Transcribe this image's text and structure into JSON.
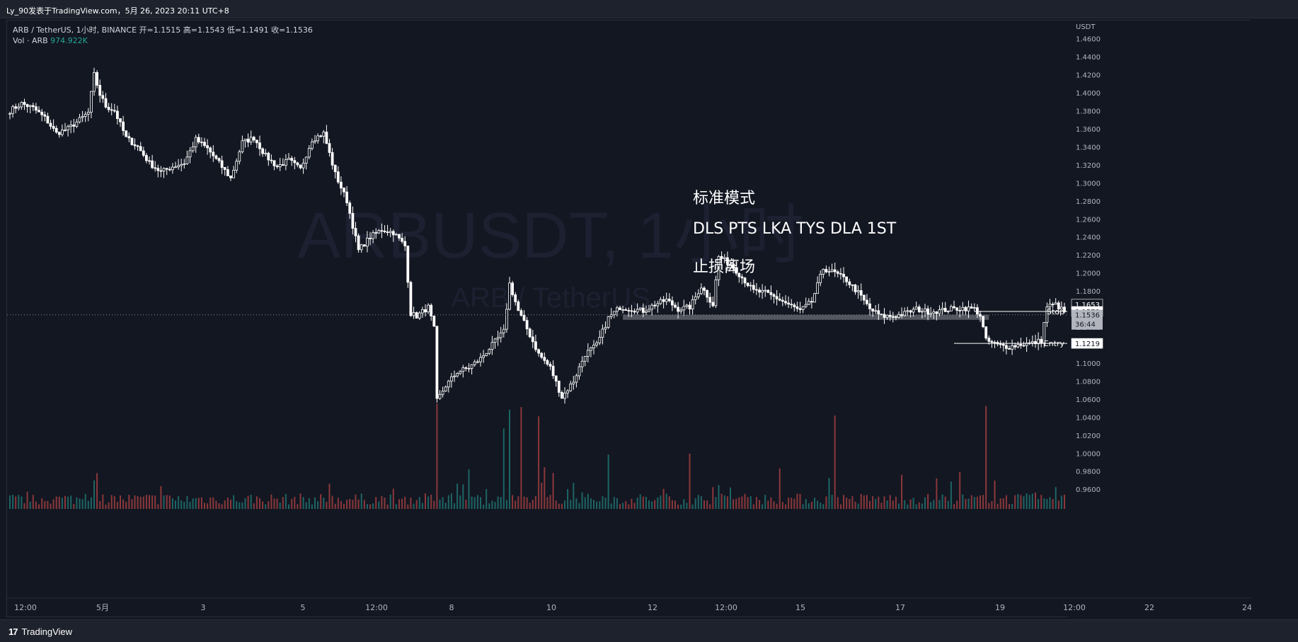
{
  "header": {
    "publisher_line": "Ly_90发表于TradingView.com，5月 26, 2023 20:11 UTC+8"
  },
  "legend": {
    "symbol_line": "ARB / TetherUS, 1小时, BINANCE  开=1.1515  高=1.1543  低=1.1491  收=1.1536",
    "vol_label": "Vol · ARB",
    "vol_value": "974.922K"
  },
  "watermark": {
    "title": "ARBUSDT, 1小时",
    "subtitle": "ARB / TetherUS"
  },
  "notes": {
    "line1": "标准模式",
    "line2": "DLS PTS LKA TYS DLA 1ST",
    "line3": "止损离场"
  },
  "footer": {
    "brand": "TradingView",
    "logo_mark": "17"
  },
  "colors": {
    "background": "#131722",
    "candle": "#ffffff",
    "vol_up": "#26a69a",
    "vol_down": "#ef5350",
    "zone": "#6b6e76"
  },
  "chart_data": {
    "type": "candlestick",
    "axis_unit": "USDT",
    "ylim": [
      0.946,
      1.466
    ],
    "y_ticks": [
      "1.4600",
      "1.4400",
      "1.4200",
      "1.4000",
      "1.3800",
      "1.3600",
      "1.3400",
      "1.3200",
      "1.3000",
      "1.2800",
      "1.2600",
      "1.2400",
      "1.2200",
      "1.2000",
      "1.1800",
      "1.1600",
      "1.1400",
      "1.1200",
      "1.1000",
      "1.0800",
      "1.0600",
      "1.0400",
      "1.0200",
      "1.0000",
      "0.9800",
      "0.9600"
    ],
    "x_ticks": [
      "12:00",
      "5月",
      "3",
      "5",
      "12:00",
      "8",
      "10",
      "12",
      "12:00",
      "15",
      "17",
      "19",
      "12:00",
      "22",
      "24"
    ],
    "close_path": [
      [
        0,
        1.38
      ],
      [
        4,
        1.388
      ],
      [
        8,
        1.383
      ],
      [
        12,
        1.372
      ],
      [
        16,
        1.355
      ],
      [
        20,
        1.36
      ],
      [
        24,
        1.37
      ],
      [
        27,
        1.378
      ],
      [
        29,
        1.42
      ],
      [
        31,
        1.398
      ],
      [
        33,
        1.385
      ],
      [
        36,
        1.38
      ],
      [
        40,
        1.35
      ],
      [
        44,
        1.34
      ],
      [
        48,
        1.322
      ],
      [
        52,
        1.312
      ],
      [
        56,
        1.318
      ],
      [
        60,
        1.322
      ],
      [
        64,
        1.348
      ],
      [
        68,
        1.338
      ],
      [
        72,
        1.322
      ],
      [
        76,
        1.305
      ],
      [
        80,
        1.345
      ],
      [
        84,
        1.35
      ],
      [
        88,
        1.33
      ],
      [
        92,
        1.318
      ],
      [
        96,
        1.325
      ],
      [
        100,
        1.315
      ],
      [
        104,
        1.348
      ],
      [
        108,
        1.355
      ],
      [
        112,
        1.31
      ],
      [
        116,
        1.28
      ],
      [
        120,
        1.225
      ],
      [
        124,
        1.24
      ],
      [
        128,
        1.248
      ],
      [
        132,
        1.245
      ],
      [
        136,
        1.23
      ],
      [
        138,
        1.155
      ],
      [
        140,
        1.152
      ],
      [
        144,
        1.162
      ],
      [
        146,
        1.138
      ],
      [
        147,
        1.058
      ],
      [
        150,
        1.075
      ],
      [
        154,
        1.09
      ],
      [
        158,
        1.095
      ],
      [
        162,
        1.105
      ],
      [
        166,
        1.12
      ],
      [
        170,
        1.135
      ],
      [
        172,
        1.188
      ],
      [
        175,
        1.158
      ],
      [
        178,
        1.138
      ],
      [
        182,
        1.11
      ],
      [
        186,
        1.095
      ],
      [
        190,
        1.062
      ],
      [
        194,
        1.08
      ],
      [
        198,
        1.11
      ],
      [
        202,
        1.12
      ],
      [
        206,
        1.15
      ],
      [
        210,
        1.162
      ],
      [
        214,
        1.16
      ],
      [
        218,
        1.158
      ],
      [
        222,
        1.165
      ],
      [
        226,
        1.17
      ],
      [
        230,
        1.16
      ],
      [
        234,
        1.162
      ],
      [
        238,
        1.185
      ],
      [
        242,
        1.165
      ],
      [
        244,
        1.218
      ],
      [
        248,
        1.21
      ],
      [
        252,
        1.195
      ],
      [
        256,
        1.18
      ],
      [
        260,
        1.178
      ],
      [
        264,
        1.172
      ],
      [
        268,
        1.165
      ],
      [
        272,
        1.158
      ],
      [
        276,
        1.168
      ],
      [
        280,
        1.205
      ],
      [
        284,
        1.2
      ],
      [
        288,
        1.192
      ],
      [
        292,
        1.178
      ],
      [
        296,
        1.16
      ],
      [
        300,
        1.152
      ],
      [
        304,
        1.152
      ],
      [
        308,
        1.155
      ],
      [
        312,
        1.16
      ],
      [
        316,
        1.157
      ],
      [
        320,
        1.158
      ],
      [
        324,
        1.16
      ],
      [
        328,
        1.161
      ],
      [
        332,
        1.16
      ],
      [
        334,
        1.153
      ],
      [
        336,
        1.125
      ],
      [
        340,
        1.12
      ],
      [
        344,
        1.118
      ],
      [
        348,
        1.121
      ],
      [
        352,
        1.122
      ],
      [
        355,
        1.125
      ],
      [
        357,
        1.163
      ],
      [
        360,
        1.165
      ],
      [
        363,
        1.157
      ]
    ],
    "bar_count": 364,
    "volume": {
      "spike_bars": [
        147,
        170,
        172,
        176,
        182,
        206,
        234,
        284,
        336
      ],
      "spike_values": "relative"
    },
    "price_labels": {
      "high_marker": "1.1653",
      "stop": "1.1573",
      "last": "1.1536",
      "countdown": "36:44",
      "entry": "1.1219",
      "stop_text": "Stop",
      "entry_text": "Entry"
    },
    "levels": {
      "stop": 1.1573,
      "entry": 1.1219,
      "last": 1.1536,
      "zone_top": 1.1535,
      "zone_bottom": 1.148,
      "zone_start_bar": 211,
      "zone_end_bar": 337,
      "stop_start_bar": 332,
      "entry_start_bar": 325
    }
  }
}
